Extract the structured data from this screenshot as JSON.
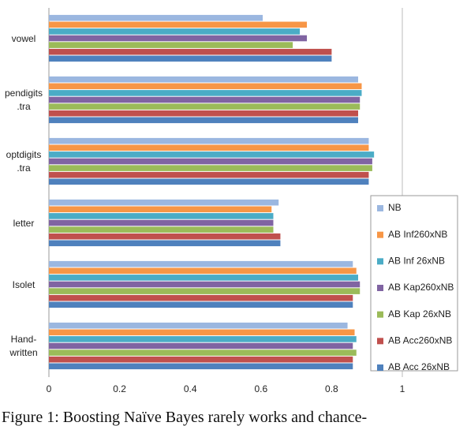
{
  "chart_data": {
    "type": "hbar",
    "categories": [
      "vowel",
      "pendigits\n.tra",
      "optdigits\n.tra",
      "letter",
      "Isolet",
      "Hand-\nwritten"
    ],
    "series": [
      {
        "name": "NB",
        "color": "#9bb7e0",
        "values": [
          0.605,
          0.875,
          0.905,
          0.65,
          0.86,
          0.845
        ]
      },
      {
        "name": "AB Inf260xNB",
        "color": "#f79646",
        "values": [
          0.73,
          0.885,
          0.905,
          0.63,
          0.87,
          0.865
        ]
      },
      {
        "name": "AB Inf 26xNB",
        "color": "#4bacc6",
        "values": [
          0.71,
          0.885,
          0.92,
          0.635,
          0.875,
          0.87
        ]
      },
      {
        "name": "AB Kap260xNB",
        "color": "#8064a2",
        "values": [
          0.73,
          0.88,
          0.915,
          0.635,
          0.88,
          0.86
        ]
      },
      {
        "name": "AB Kap 26xNB",
        "color": "#9bbb59",
        "values": [
          0.69,
          0.88,
          0.915,
          0.635,
          0.88,
          0.87
        ]
      },
      {
        "name": "AB Acc260xNB",
        "color": "#c0504d",
        "values": [
          0.8,
          0.875,
          0.905,
          0.655,
          0.86,
          0.86
        ]
      },
      {
        "name": "AB Acc 26xNB",
        "color": "#4f81bd",
        "values": [
          0.8,
          0.875,
          0.905,
          0.655,
          0.86,
          0.86
        ]
      }
    ],
    "xlim": [
      0,
      1
    ],
    "xticks": [
      0,
      0.2,
      0.4,
      0.6,
      0.8,
      1
    ],
    "legend": "right",
    "caption": "Figure 1: Boosting Naïve Bayes rarely works and chance-"
  }
}
